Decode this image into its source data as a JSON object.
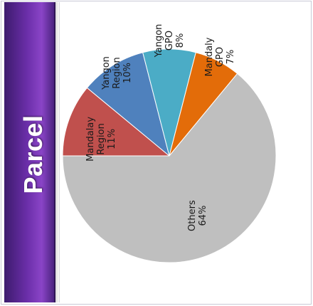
{
  "side_title": "Parcel",
  "chart_data": {
    "type": "pie",
    "title": "",
    "legend": "none",
    "start_angle_deg": 180,
    "direction": "clockwise",
    "slices": [
      {
        "label_lines": [
          "Mandalay",
          "Region",
          "11%"
        ],
        "name": "Mandalay Region",
        "value": 11,
        "color": "#c0504d"
      },
      {
        "label_lines": [
          "Yangon",
          "Region",
          "10%"
        ],
        "name": "Yangon Region",
        "value": 10,
        "color": "#4f81bd"
      },
      {
        "label_lines": [
          "Yangon",
          "GPO",
          "8%"
        ],
        "name": "Yangon GPO",
        "value": 8,
        "color": "#4bacc6"
      },
      {
        "label_lines": [
          "Mandaly",
          "GPO",
          "7%"
        ],
        "name": "Mandaly GPO",
        "value": 7,
        "color": "#e36c09"
      },
      {
        "label_lines": [
          "Others",
          "64%"
        ],
        "name": "Others",
        "value": 64,
        "color": "#bfbfbf"
      }
    ]
  }
}
